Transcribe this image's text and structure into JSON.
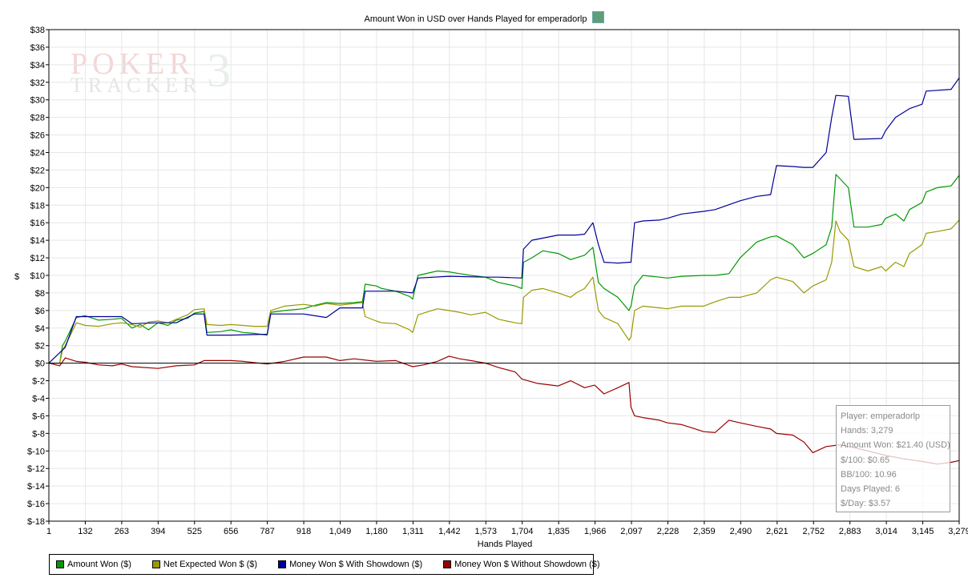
{
  "chart_data": {
    "type": "line",
    "title": "Amount Won in USD over Hands Played for emperadorlp",
    "xlabel": "Hands Played",
    "ylabel": "$",
    "xlim": [
      1,
      3279
    ],
    "ylim": [
      -18,
      38
    ],
    "x_ticks": [
      "1",
      "132",
      "263",
      "394",
      "525",
      "656",
      "787",
      "918",
      "1,049",
      "1,180",
      "1,311",
      "1,442",
      "1,573",
      "1,704",
      "1,835",
      "1,966",
      "2,097",
      "2,228",
      "2,359",
      "2,490",
      "2,621",
      "2,752",
      "2,883",
      "3,014",
      "3,145",
      "3,279"
    ],
    "y_ticks": [
      "$38",
      "$36",
      "$34",
      "$32",
      "$30",
      "$28",
      "$26",
      "$24",
      "$22",
      "$20",
      "$18",
      "$16",
      "$14",
      "$12",
      "$10",
      "$8",
      "$6",
      "$4",
      "$2",
      "$0",
      "$-2",
      "$-4",
      "$-6",
      "$-8",
      "$-10",
      "$-12",
      "$-14",
      "$-16",
      "$-18"
    ],
    "grid": true,
    "legend_position": "bottom-left",
    "series": [
      {
        "name": "Amount Won ($)",
        "color": "#009900",
        "x": [
          1,
          40,
          50,
          60,
          100,
          132,
          180,
          230,
          263,
          300,
          330,
          360,
          394,
          430,
          460,
          500,
          525,
          560,
          570,
          620,
          656,
          700,
          740,
          787,
          800,
          850,
          918,
          960,
          1000,
          1049,
          1100,
          1130,
          1140,
          1180,
          1200,
          1250,
          1300,
          1311,
          1330,
          1400,
          1442,
          1480,
          1520,
          1573,
          1620,
          1680,
          1704,
          1710,
          1740,
          1780,
          1835,
          1880,
          1900,
          1930,
          1960,
          1980,
          2000,
          2050,
          2090,
          2097,
          2110,
          2140,
          2200,
          2228,
          2280,
          2359,
          2400,
          2450,
          2490,
          2550,
          2600,
          2621,
          2680,
          2720,
          2752,
          2800,
          2820,
          2835,
          2850,
          2880,
          2900,
          2950,
          3000,
          3014,
          3050,
          3080,
          3100,
          3145,
          3160,
          3200,
          3250,
          3279
        ],
        "values": [
          0,
          0,
          2,
          2.5,
          5.2,
          5.4,
          4.9,
          5.0,
          5.1,
          4.0,
          4.4,
          3.8,
          4.6,
          4.3,
          4.9,
          5.1,
          5.7,
          5.9,
          3.5,
          3.6,
          3.8,
          3.5,
          3.4,
          3.2,
          5.8,
          6.0,
          6.2,
          6.6,
          6.9,
          6.8,
          6.9,
          7.0,
          9.0,
          8.8,
          8.5,
          8.2,
          7.6,
          7.3,
          10.0,
          10.5,
          10.4,
          10.2,
          10.0,
          9.8,
          9.2,
          8.8,
          8.5,
          11.5,
          12.0,
          12.8,
          12.5,
          11.8,
          12.0,
          12.3,
          13.2,
          9.2,
          8.5,
          7.5,
          6.0,
          6.5,
          8.8,
          10.0,
          9.8,
          9.7,
          9.9,
          10.0,
          10.0,
          10.2,
          12.0,
          13.8,
          14.4,
          14.5,
          13.5,
          12.0,
          12.5,
          13.5,
          15.5,
          21.5,
          21.0,
          20.0,
          15.5,
          15.5,
          15.8,
          16.5,
          17.0,
          16.2,
          17.5,
          18.3,
          19.5,
          20.0,
          20.2,
          21.4
        ]
      },
      {
        "name": "Net Expected Won $ ($)",
        "color": "#999900",
        "x": [
          1,
          40,
          50,
          60,
          100,
          132,
          180,
          230,
          263,
          300,
          330,
          360,
          394,
          430,
          460,
          500,
          525,
          560,
          570,
          620,
          656,
          700,
          740,
          787,
          800,
          850,
          918,
          960,
          1000,
          1049,
          1100,
          1130,
          1140,
          1180,
          1200,
          1250,
          1300,
          1311,
          1330,
          1400,
          1442,
          1480,
          1520,
          1573,
          1620,
          1680,
          1704,
          1710,
          1740,
          1780,
          1835,
          1880,
          1900,
          1930,
          1960,
          1980,
          2000,
          2050,
          2090,
          2097,
          2110,
          2140,
          2200,
          2228,
          2280,
          2359,
          2400,
          2450,
          2490,
          2550,
          2600,
          2621,
          2680,
          2720,
          2752,
          2800,
          2820,
          2835,
          2850,
          2880,
          2900,
          2950,
          3000,
          3014,
          3050,
          3080,
          3100,
          3145,
          3160,
          3200,
          3250,
          3279
        ],
        "values": [
          0,
          0,
          1.5,
          2,
          4.6,
          4.3,
          4.2,
          4.5,
          4.6,
          4.4,
          4.1,
          4.7,
          4.8,
          4.6,
          5.0,
          5.5,
          6.1,
          6.2,
          4.4,
          4.3,
          4.4,
          4.3,
          4.2,
          4.2,
          6.0,
          6.5,
          6.7,
          6.5,
          6.8,
          6.6,
          6.8,
          6.9,
          5.3,
          4.8,
          4.6,
          4.5,
          3.8,
          3.5,
          5.5,
          6.2,
          6.0,
          5.8,
          5.5,
          5.8,
          5.0,
          4.6,
          4.5,
          7.5,
          8.3,
          8.5,
          8.0,
          7.5,
          8.0,
          8.5,
          9.8,
          6.0,
          5.2,
          4.5,
          2.6,
          3.0,
          6.0,
          6.5,
          6.3,
          6.2,
          6.5,
          6.5,
          7.0,
          7.5,
          7.5,
          8.0,
          9.5,
          9.8,
          9.3,
          8.0,
          8.8,
          9.5,
          11.5,
          16.2,
          15.0,
          14.0,
          11.0,
          10.5,
          11.0,
          10.5,
          11.5,
          11.0,
          12.5,
          13.5,
          14.8,
          15.0,
          15.3,
          16.3
        ]
      },
      {
        "name": "Money Won $ With Showdown ($)",
        "color": "#000099",
        "x": [
          1,
          50,
          60,
          100,
          132,
          230,
          263,
          300,
          394,
          460,
          525,
          560,
          570,
          656,
          787,
          800,
          918,
          1000,
          1049,
          1100,
          1130,
          1140,
          1180,
          1250,
          1311,
          1330,
          1442,
          1573,
          1620,
          1704,
          1710,
          1740,
          1835,
          1900,
          1930,
          1960,
          1980,
          2000,
          2050,
          2090,
          2097,
          2110,
          2140,
          2200,
          2228,
          2280,
          2359,
          2400,
          2490,
          2550,
          2600,
          2621,
          2680,
          2720,
          2752,
          2800,
          2820,
          2835,
          2880,
          2900,
          3000,
          3014,
          3050,
          3100,
          3145,
          3160,
          3250,
          3279
        ],
        "values": [
          0,
          1.5,
          1.8,
          5.3,
          5.3,
          5.3,
          5.3,
          4.5,
          4.6,
          4.6,
          5.6,
          5.6,
          3.2,
          3.2,
          3.3,
          5.6,
          5.6,
          5.2,
          6.3,
          6.3,
          6.3,
          8.2,
          8.2,
          8.2,
          8.0,
          9.7,
          9.9,
          9.8,
          9.8,
          9.7,
          13.0,
          14.0,
          14.6,
          14.6,
          14.7,
          16.0,
          13.5,
          11.5,
          11.4,
          11.5,
          11.5,
          16.0,
          16.2,
          16.3,
          16.5,
          17.0,
          17.3,
          17.5,
          18.5,
          19.0,
          19.2,
          22.5,
          22.4,
          22.3,
          22.3,
          24.0,
          28.0,
          30.5,
          30.4,
          25.5,
          25.6,
          26.5,
          28.0,
          29.0,
          29.5,
          31.0,
          31.2,
          32.5
        ]
      },
      {
        "name": "Money Won $ Without Showdown ($)",
        "color": "#990000",
        "x": [
          1,
          40,
          60,
          100,
          132,
          180,
          230,
          263,
          300,
          394,
          460,
          525,
          560,
          656,
          700,
          787,
          850,
          918,
          1000,
          1049,
          1100,
          1180,
          1250,
          1311,
          1350,
          1400,
          1442,
          1480,
          1520,
          1573,
          1620,
          1680,
          1704,
          1760,
          1835,
          1880,
          1930,
          1966,
          2000,
          2050,
          2090,
          2097,
          2110,
          2140,
          2200,
          2228,
          2280,
          2359,
          2400,
          2450,
          2490,
          2550,
          2600,
          2621,
          2680,
          2720,
          2752,
          2800,
          2850,
          2883,
          2950,
          3014,
          3080,
          3145,
          3200,
          3250,
          3279
        ],
        "values": [
          0,
          -0.3,
          0.6,
          0.2,
          0.1,
          -0.2,
          -0.3,
          -0.1,
          -0.4,
          -0.6,
          -0.3,
          -0.2,
          0.3,
          0.3,
          0.2,
          -0.1,
          0.2,
          0.7,
          0.7,
          0.3,
          0.5,
          0.2,
          0.3,
          -0.4,
          -0.2,
          0.2,
          0.8,
          0.5,
          0.3,
          0.0,
          -0.5,
          -1.0,
          -1.8,
          -2.3,
          -2.6,
          -2.0,
          -2.8,
          -2.5,
          -3.5,
          -2.8,
          -2.2,
          -5.0,
          -6.0,
          -6.2,
          -6.5,
          -6.8,
          -7.0,
          -7.8,
          -7.9,
          -6.5,
          -6.8,
          -7.2,
          -7.5,
          -8.0,
          -8.2,
          -9.0,
          -10.2,
          -9.5,
          -9.3,
          -9.5,
          -10.0,
          -10.5,
          -10.9,
          -11.2,
          -11.5,
          -11.3,
          -11.1
        ]
      }
    ]
  },
  "watermark": {
    "line1": "POKER",
    "line2": "TRACKER",
    "three": "3"
  },
  "stats": {
    "player": "Player: emperadorlp",
    "hands": "Hands: 3,279",
    "amount_won": "Amount Won: $21.40 (USD)",
    "per_100": "$/100: $0.65",
    "bb_100": "BB/100: 10.96",
    "days_played": "Days Played: 6",
    "per_day": "$/Day: $3.57"
  }
}
